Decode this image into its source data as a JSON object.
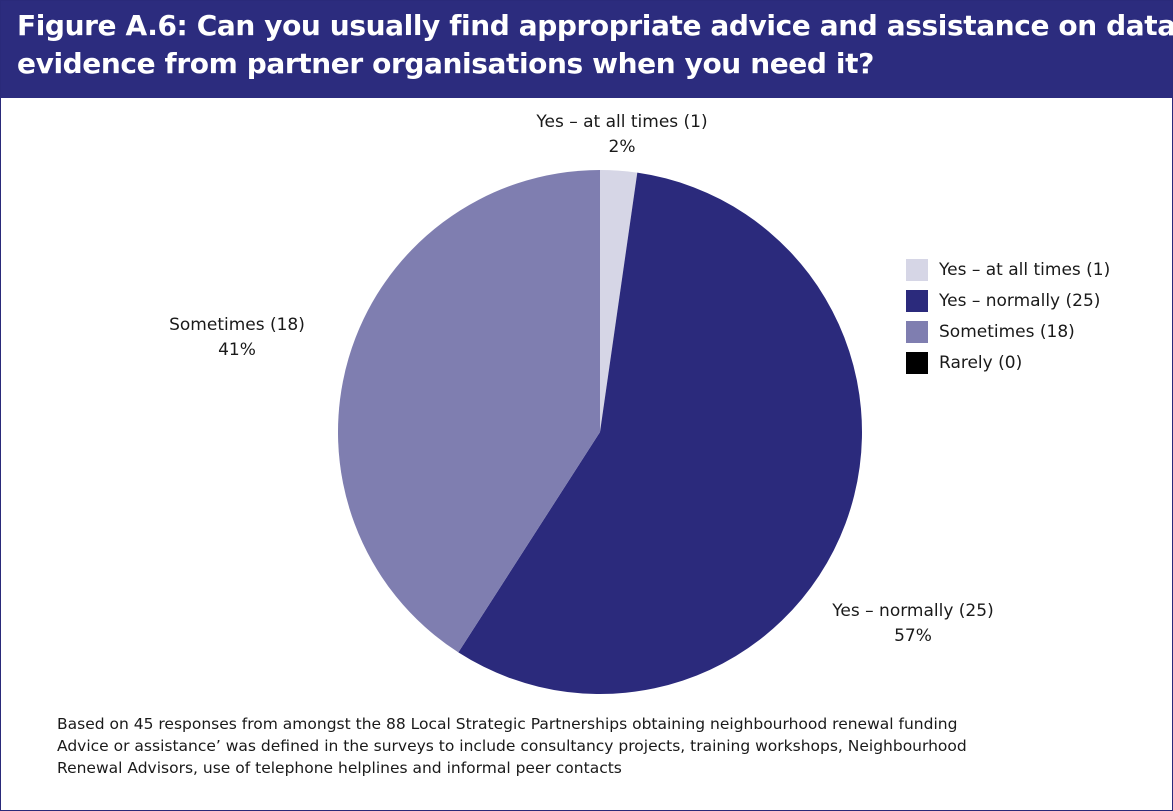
{
  "title_line1": "Figure A.6: Can you usually find appropriate advice and assistance on data/",
  "title_line2": "evidence from partner organisations when you need it?",
  "chart_data": {
    "type": "pie",
    "slices": [
      {
        "name": "Yes – at all times (1)",
        "value": 1,
        "percent_label": "2%",
        "color": "#d6d6e6"
      },
      {
        "name": "Yes – normally (25)",
        "value": 25,
        "percent_label": "57%",
        "color": "#2b2a7c"
      },
      {
        "name": "Sometimes (18)",
        "value": 18,
        "percent_label": "41%",
        "color": "#7f7eb0"
      },
      {
        "name": "Rarely (0)",
        "value": 0,
        "percent_label": "",
        "color": "#000000"
      }
    ],
    "legend_placement": "right"
  },
  "notes": [
    "Based on 45 responses from amongst the 88 Local Strategic Partnerships obtaining neighbourhood renewal funding",
    "Advice or assistance’ was defined in the surveys to include consultancy projects, training workshops, Neighbourhood",
    "Renewal Advisors, use of telephone helplines and informal peer contacts"
  ]
}
